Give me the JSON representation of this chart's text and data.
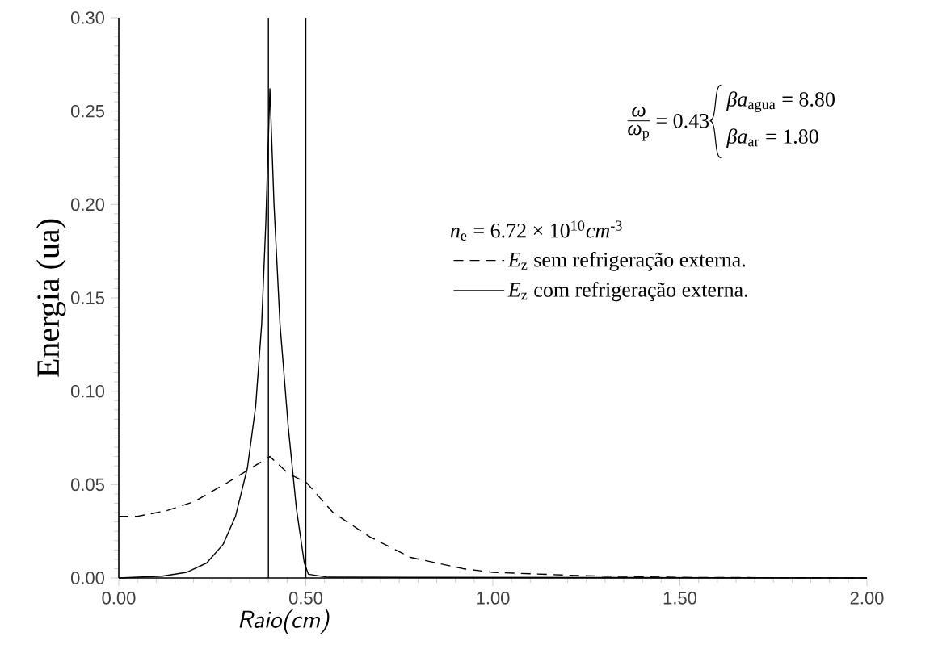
{
  "chart_data": {
    "type": "line",
    "xlabel": "Raio(cm)",
    "ylabel": "Energia (ua)",
    "xlim": [
      0,
      2
    ],
    "ylim": [
      0,
      0.3
    ],
    "xticks": [
      {
        "value": 0,
        "label": "0.00"
      },
      {
        "value": 0.5,
        "label": "0.50"
      },
      {
        "value": 1,
        "label": "1.00"
      },
      {
        "value": 1.5,
        "label": "1.50"
      },
      {
        "value": 2,
        "label": "2.00"
      }
    ],
    "yticks": [
      {
        "value": 0,
        "label": "0.00"
      },
      {
        "value": 0.05,
        "label": "0.05"
      },
      {
        "value": 0.1,
        "label": "0.10"
      },
      {
        "value": 0.15,
        "label": "0.15"
      },
      {
        "value": 0.2,
        "label": "0.20"
      },
      {
        "value": 0.25,
        "label": "0.25"
      },
      {
        "value": 0.3,
        "label": "0.30"
      }
    ],
    "grid": false,
    "legend": "right",
    "marker": "none",
    "annotations": [
      "*ω*",
      "*ω*$_{p}$",
      "= 0.43",
      "*βa*$_{agua}$ = 8.80",
      "*βa*$_{ar}$ = 1.80",
      "*n*$_{e}$ = 6.72 × 10$^{10}$*cm*$^{-3}$"
    ],
    "ref_lines": [
      {
        "axis": "x",
        "value": 0.4,
        "color": "#000000",
        "line_style": "solid"
      },
      {
        "axis": "x",
        "value": 0.5,
        "color": "#000000",
        "line_style": "solid"
      }
    ],
    "series": [
      {
        "name": "*E*$_{z}$ sem refrigeração externa.",
        "color": "#000000",
        "line_style": "dashed",
        "x": [
          0,
          0.05,
          0.127,
          0.203,
          0.29,
          0.355,
          0.404,
          0.453,
          0.502,
          0.573,
          0.671,
          0.78,
          0.92,
          1.0,
          1.2,
          1.3,
          1.5,
          2.0
        ],
        "values": [
          0.033,
          0.033,
          0.036,
          0.041,
          0.051,
          0.059,
          0.065,
          0.056,
          0.051,
          0.035,
          0.022,
          0.011,
          0.005,
          0.003,
          0.0015,
          0.001,
          0.0003,
          0
        ]
      },
      {
        "name": "*E*$_{z}$ com refrigeração externa.",
        "color": "#000000",
        "line_style": "solid",
        "x": [
          0,
          0.116,
          0.181,
          0.235,
          0.279,
          0.312,
          0.344,
          0.366,
          0.382,
          0.393,
          0.404,
          0.415,
          0.431,
          0.453,
          0.475,
          0.496,
          0.507,
          0.56,
          2.0
        ],
        "values": [
          0,
          0.001,
          0.003,
          0.008,
          0.018,
          0.033,
          0.059,
          0.092,
          0.136,
          0.19,
          0.262,
          0.2,
          0.136,
          0.081,
          0.037,
          0.008,
          0.002,
          0.0004,
          0
        ]
      }
    ]
  }
}
